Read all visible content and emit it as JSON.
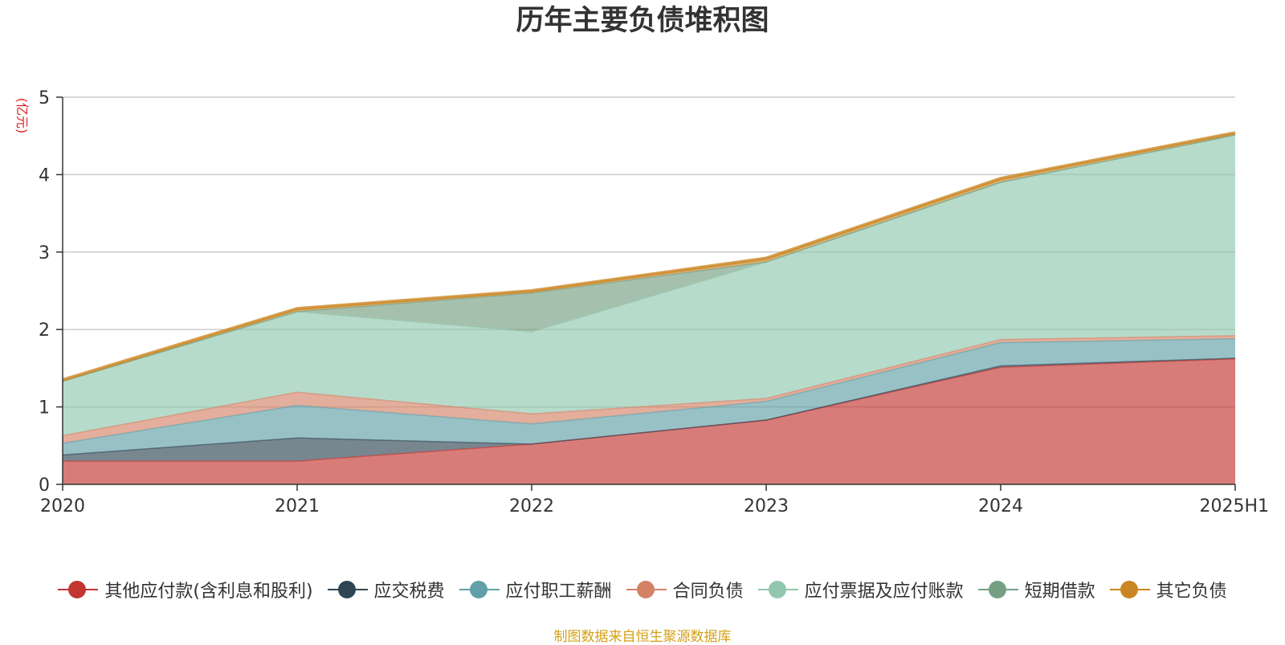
{
  "title": "历年主要负债堆积图",
  "source_note": "制图数据来自恒生聚源数据库",
  "chart_data": {
    "type": "area",
    "stacked": true,
    "title": "历年主要负债堆积图",
    "ylabel": "(亿元)",
    "xlabel": "",
    "categories": [
      "2020",
      "2021",
      "2022",
      "2023",
      "2024",
      "2025H1"
    ],
    "ylim": [
      0,
      5
    ],
    "yticks": [
      0,
      1,
      2,
      3,
      4,
      5
    ],
    "grid": true,
    "legend_position": "bottom",
    "series": [
      {
        "name": "其他应付款(含利息和股利)",
        "color": "#c23531",
        "values": [
          0.3,
          0.3,
          0.52,
          0.83,
          1.51,
          1.62
        ]
      },
      {
        "name": "应交税费",
        "color": "#2f4554",
        "values": [
          0.08,
          0.3,
          0.0,
          0.0,
          0.02,
          0.01
        ]
      },
      {
        "name": "应付职工薪酬",
        "color": "#61a0a8",
        "values": [
          0.15,
          0.42,
          0.26,
          0.24,
          0.3,
          0.25
        ]
      },
      {
        "name": "合同负债",
        "color": "#d48265",
        "values": [
          0.1,
          0.17,
          0.13,
          0.04,
          0.04,
          0.04
        ]
      },
      {
        "name": "应付票据及应付账款",
        "color": "#91c7ae",
        "values": [
          0.7,
          1.04,
          1.06,
          1.76,
          2.03,
          2.59
        ]
      },
      {
        "name": "短期借款",
        "color": "#749f83",
        "values": [
          0.0,
          0.0,
          0.5,
          0.0,
          0.0,
          0.0
        ]
      },
      {
        "name": "其它负债",
        "color": "#ca8622",
        "values": [
          0.02,
          0.04,
          0.03,
          0.05,
          0.05,
          0.03
        ]
      }
    ]
  }
}
